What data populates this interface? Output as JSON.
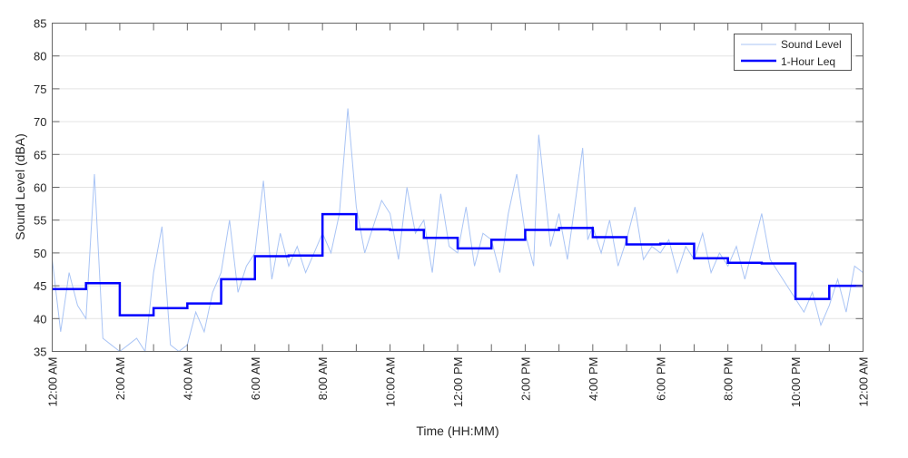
{
  "chart_data": {
    "type": "line",
    "xlabel": "Time (HH:MM)",
    "ylabel": "Sound Level (dBA)",
    "ylim": [
      35,
      85
    ],
    "xlim_hours": [
      0,
      24
    ],
    "yticks": [
      35,
      40,
      45,
      50,
      55,
      60,
      65,
      70,
      75,
      80,
      85
    ],
    "xtick_labels": [
      "12:00 AM",
      "2:00 AM",
      "4:00 AM",
      "6:00 AM",
      "8:00 AM",
      "10:00 AM",
      "12:00 PM",
      "2:00 PM",
      "4:00 PM",
      "6:00 PM",
      "8:00 PM",
      "10:00 PM",
      "12:00 AM"
    ],
    "grid": "horizontal",
    "legend": "top-right",
    "colors": {
      "sound_level": "#a9c4f5",
      "leq": "#0000ff"
    },
    "series": [
      {
        "name": "Sound Level",
        "points": [
          [
            0,
            49
          ],
          [
            0.25,
            38
          ],
          [
            0.5,
            47
          ],
          [
            0.75,
            42
          ],
          [
            1,
            40
          ],
          [
            1.25,
            62
          ],
          [
            1.5,
            37
          ],
          [
            1.75,
            36
          ],
          [
            2,
            35
          ],
          [
            2.25,
            36
          ],
          [
            2.5,
            37
          ],
          [
            2.75,
            35
          ],
          [
            3,
            47
          ],
          [
            3.25,
            54
          ],
          [
            3.5,
            36
          ],
          [
            3.75,
            35
          ],
          [
            4,
            36
          ],
          [
            4.25,
            41
          ],
          [
            4.5,
            38
          ],
          [
            4.75,
            44
          ],
          [
            5,
            47
          ],
          [
            5.25,
            55
          ],
          [
            5.5,
            44
          ],
          [
            5.75,
            48
          ],
          [
            6,
            50
          ],
          [
            6.25,
            61
          ],
          [
            6.5,
            46
          ],
          [
            6.75,
            53
          ],
          [
            7,
            48
          ],
          [
            7.25,
            51
          ],
          [
            7.5,
            47
          ],
          [
            7.75,
            50
          ],
          [
            8,
            53
          ],
          [
            8.25,
            50
          ],
          [
            8.5,
            56
          ],
          [
            8.75,
            72
          ],
          [
            9,
            57
          ],
          [
            9.25,
            50
          ],
          [
            9.5,
            54
          ],
          [
            9.75,
            58
          ],
          [
            10,
            56
          ],
          [
            10.25,
            49
          ],
          [
            10.5,
            60
          ],
          [
            10.75,
            53
          ],
          [
            11,
            55
          ],
          [
            11.25,
            47
          ],
          [
            11.5,
            59
          ],
          [
            11.75,
            51
          ],
          [
            12,
            50
          ],
          [
            12.25,
            57
          ],
          [
            12.5,
            48
          ],
          [
            12.75,
            53
          ],
          [
            13,
            52
          ],
          [
            13.25,
            47
          ],
          [
            13.5,
            56
          ],
          [
            13.75,
            62
          ],
          [
            14,
            53
          ],
          [
            14.25,
            48
          ],
          [
            14.4,
            68
          ],
          [
            14.75,
            51
          ],
          [
            15,
            56
          ],
          [
            15.25,
            49
          ],
          [
            15.7,
            66
          ],
          [
            15.85,
            52
          ],
          [
            16,
            54
          ],
          [
            16.25,
            50
          ],
          [
            16.5,
            55
          ],
          [
            16.75,
            48
          ],
          [
            17,
            52
          ],
          [
            17.25,
            57
          ],
          [
            17.5,
            49
          ],
          [
            17.75,
            51
          ],
          [
            18,
            50
          ],
          [
            18.25,
            52
          ],
          [
            18.5,
            47
          ],
          [
            18.75,
            51
          ],
          [
            19,
            49
          ],
          [
            19.25,
            53
          ],
          [
            19.5,
            47
          ],
          [
            19.75,
            50
          ],
          [
            20,
            48
          ],
          [
            20.25,
            51
          ],
          [
            20.5,
            46
          ],
          [
            21,
            56
          ],
          [
            21.25,
            49
          ],
          [
            21.5,
            47
          ],
          [
            21.75,
            45
          ],
          [
            22,
            43
          ],
          [
            22.25,
            41
          ],
          [
            22.5,
            44
          ],
          [
            22.75,
            39
          ],
          [
            23,
            42
          ],
          [
            23.25,
            46
          ],
          [
            23.5,
            41
          ],
          [
            23.75,
            48
          ],
          [
            24,
            47
          ]
        ]
      },
      {
        "name": "1-Hour Leq",
        "hourly_values": [
          44.5,
          45.4,
          40.5,
          41.6,
          42.3,
          46.0,
          49.5,
          49.6,
          55.9,
          53.6,
          53.5,
          52.3,
          50.7,
          52.0,
          53.5,
          53.8,
          52.4,
          51.3,
          51.4,
          49.2,
          48.5,
          48.4,
          43.0,
          45.0
        ]
      }
    ]
  }
}
